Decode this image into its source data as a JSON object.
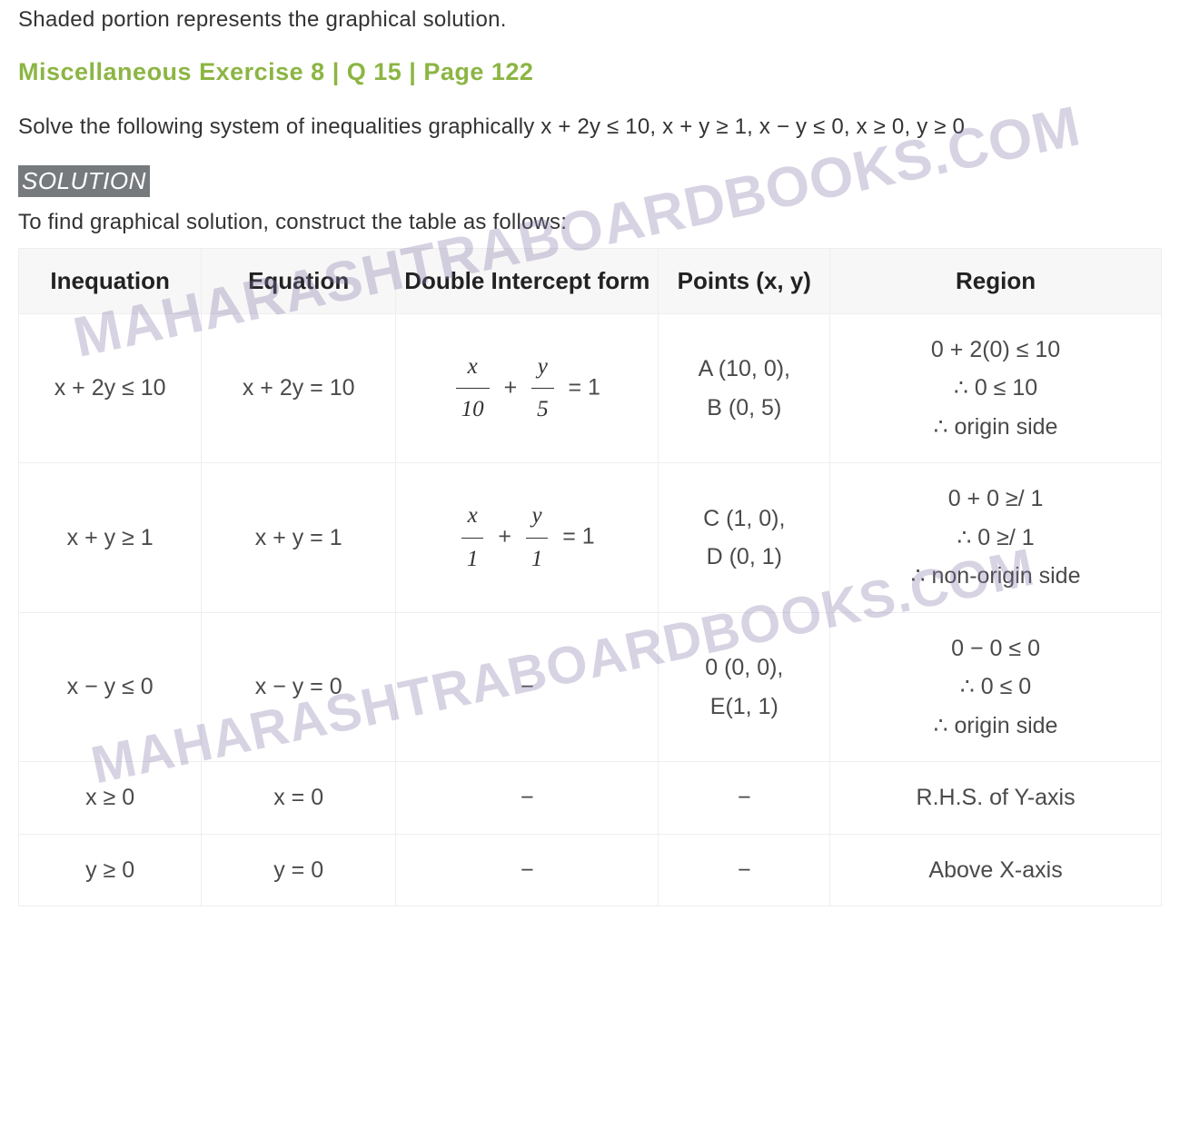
{
  "intro": "Shaded portion represents the graphical solution.",
  "heading": "Miscellaneous Exercise 8 | Q 15 | Page 122",
  "problem": "Solve the following system of inequalities graphically x + 2y ≤ 10, x + y ≥ 1, x − y ≤ 0, x ≥ 0, y ≥ 0",
  "solution_label": "SOLUTION",
  "to_find": "To find graphical solution, construct the table as follows:",
  "watermark": "MAHARASHTRABOARDBOOKS.COM",
  "table": {
    "headers": {
      "inequation": "Inequation",
      "equation": "Equation",
      "double_intercept": "Double Intercept form",
      "points": "Points (x, y)",
      "region": "Region"
    },
    "column_widths_pct": [
      16,
      17,
      23,
      15,
      29
    ],
    "header_bg": "#f7f7f7",
    "border_color": "#eeeeee",
    "header_fontsize": 26,
    "cell_fontsize": 25,
    "text_color": "#4a4a4a",
    "rows": [
      {
        "inequation": "x + 2y ≤ 10",
        "equation": "x + 2y = 10",
        "double_intercept": {
          "type": "frac_sum",
          "x_den": "10",
          "y_den": "5"
        },
        "points": "A (10, 0),\nB (0, 5)",
        "region": "0 + 2(0) ≤ 10\n∴ 0 ≤ 10\n∴ origin side"
      },
      {
        "inequation": "x + y ≥ 1",
        "equation": "x + y = 1",
        "double_intercept": {
          "type": "frac_sum",
          "x_den": "1",
          "y_den": "1"
        },
        "points": "C (1, 0),\nD (0, 1)",
        "region": "0 + 0 ≥/ 1\n∴ 0 ≥/ 1\n∴ non-origin side"
      },
      {
        "inequation": "x − y ≤ 0",
        "equation": "x − y = 0",
        "double_intercept": {
          "type": "dash"
        },
        "points": "0 (0, 0),\nE(1, 1)",
        "region": "0 − 0 ≤ 0\n∴ 0 ≤ 0\n∴ origin side"
      },
      {
        "inequation": "x ≥ 0",
        "equation": "x = 0",
        "double_intercept": {
          "type": "dash"
        },
        "points": "−",
        "region": "R.H.S. of Y-axis"
      },
      {
        "inequation": "y ≥ 0",
        "equation": "y = 0",
        "double_intercept": {
          "type": "dash"
        },
        "points": "−",
        "region": "Above X-axis"
      }
    ]
  },
  "colors": {
    "heading": "#8cb543",
    "body_text": "#333333",
    "cell_text": "#4a4a4a",
    "solution_badge_bg": "#777a7c",
    "solution_badge_fg": "#ffffff",
    "watermark": "rgba(131,117,168,0.32)"
  }
}
